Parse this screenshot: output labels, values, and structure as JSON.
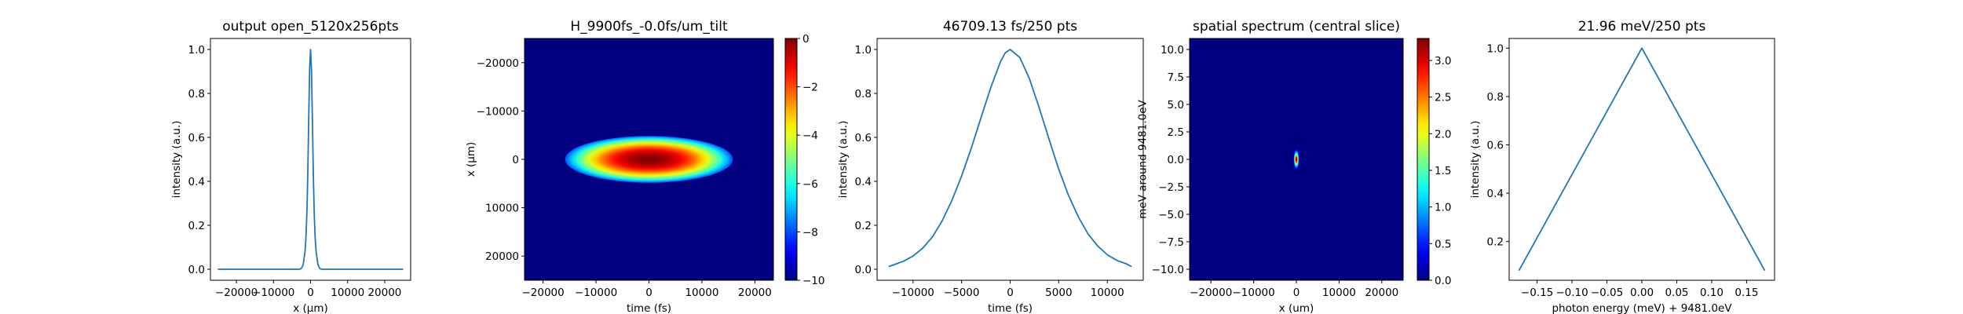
{
  "figure": {
    "background": "#ffffff",
    "line_color": "#1f77b4"
  },
  "chart_data": [
    {
      "type": "line",
      "title": "output open_5120x256pts",
      "xlabel": "x (μm)",
      "ylabel": "intensity (a.u.)",
      "xlim": [
        -27000,
        27000
      ],
      "ylim": [
        -0.05,
        1.05
      ],
      "xticks": [
        -20000,
        -10000,
        0,
        10000,
        20000
      ],
      "yticks": [
        0.0,
        0.2,
        0.4,
        0.6,
        0.8,
        1.0
      ],
      "xtick_labels": [
        "−20000",
        "−10000",
        "0",
        "10000",
        "20000"
      ],
      "ytick_labels": [
        "0.0",
        "0.2",
        "0.4",
        "0.6",
        "0.8",
        "1.0"
      ],
      "series": [
        {
          "x": [
            -25000,
            -3000,
            -2500,
            -2000,
            -1500,
            -1250,
            -1000,
            -750,
            -500,
            -250,
            0,
            250,
            500,
            750,
            1000,
            1250,
            1500,
            2000,
            2500,
            3000,
            25000
          ],
          "values": [
            0.0,
            0.0,
            0.003,
            0.02,
            0.08,
            0.14,
            0.25,
            0.43,
            0.68,
            0.91,
            1.0,
            0.91,
            0.68,
            0.43,
            0.25,
            0.14,
            0.08,
            0.02,
            0.003,
            0.0,
            0.0
          ]
        }
      ]
    },
    {
      "type": "heatmap",
      "title": "H_9900fs_-0.0fs/um_tilt",
      "xlabel": "time (fs)",
      "ylabel": "x (μm)",
      "xlim": [
        -23500,
        23500
      ],
      "ylim": [
        -25000,
        25000
      ],
      "y_inverted": true,
      "xticks": [
        -20000,
        -10000,
        0,
        10000,
        20000
      ],
      "yticks": [
        -20000,
        -10000,
        0,
        10000,
        20000
      ],
      "xtick_labels": [
        "−20000",
        "−10000",
        "0",
        "10000",
        "20000"
      ],
      "ytick_labels": [
        "−20000",
        "−10000",
        "0",
        "10000",
        "20000"
      ],
      "colormap": "jet",
      "clim": [
        -10,
        0
      ],
      "background_value": -10,
      "blob": {
        "center_t": 0,
        "center_x": 0,
        "sigma_t": 7200,
        "sigma_x": 2200,
        "peak": 0
      },
      "colorbar": {
        "ticks": [
          0,
          -2,
          -4,
          -6,
          -8,
          -10
        ],
        "tick_labels": [
          "0",
          "−2",
          "−4",
          "−6",
          "−8",
          "−10"
        ]
      }
    },
    {
      "type": "line",
      "title": "46709.13 fs/250 pts",
      "xlabel": "time (fs)",
      "ylabel": "intensity (a.u.)",
      "xlim": [
        -13700,
        13700
      ],
      "ylim": [
        -0.05,
        1.05
      ],
      "xticks": [
        -10000,
        -5000,
        0,
        5000,
        10000
      ],
      "yticks": [
        0.0,
        0.2,
        0.4,
        0.6,
        0.8,
        1.0
      ],
      "xtick_labels": [
        "−10000",
        "−5000",
        "0",
        "5000",
        "10000"
      ],
      "ytick_labels": [
        "0.0",
        "0.2",
        "0.4",
        "0.6",
        "0.8",
        "1.0"
      ],
      "series": [
        {
          "x": [
            -12500,
            -12000,
            -11000,
            -10000,
            -9000,
            -8000,
            -7000,
            -6000,
            -5000,
            -4000,
            -3000,
            -2000,
            -1000,
            -500,
            0,
            1000,
            2000,
            3000,
            4000,
            5000,
            6000,
            7000,
            8000,
            9000,
            10000,
            11000,
            12000,
            12500
          ],
          "values": [
            0.012,
            0.02,
            0.036,
            0.06,
            0.096,
            0.147,
            0.22,
            0.313,
            0.424,
            0.551,
            0.69,
            0.826,
            0.944,
            0.985,
            1.0,
            0.963,
            0.865,
            0.733,
            0.592,
            0.455,
            0.337,
            0.24,
            0.162,
            0.106,
            0.066,
            0.04,
            0.024,
            0.012
          ]
        }
      ]
    },
    {
      "type": "heatmap",
      "title": "spatial spectrum (central slice)",
      "xlabel": "x (um)",
      "ylabel": "meV around 9481.0eV",
      "xlim": [
        -25000,
        25000
      ],
      "ylim": [
        -11,
        11
      ],
      "xticks": [
        -20000,
        -10000,
        0,
        10000,
        20000
      ],
      "yticks": [
        10.0,
        7.5,
        5.0,
        2.5,
        0.0,
        -2.5,
        -5.0,
        -7.5,
        -10.0
      ],
      "xtick_labels": [
        "−20000",
        "−10000",
        "0",
        "10000",
        "20000"
      ],
      "ytick_labels": [
        "10.0",
        "7.5",
        "5.0",
        "2.5",
        "0.0",
        "−2.5",
        "−5.0",
        "−7.5",
        "−10.0"
      ],
      "colormap": "jet",
      "clim": [
        0,
        3.3
      ],
      "background_value": 0,
      "blob": {
        "center_t": 0,
        "center_x": 0,
        "sigma_t": 320,
        "sigma_x": 0.42,
        "peak": 3.3
      },
      "colorbar": {
        "ticks": [
          0.0,
          0.5,
          1.0,
          1.5,
          2.0,
          2.5,
          3.0
        ],
        "tick_labels": [
          "0.0",
          "0.5",
          "1.0",
          "1.5",
          "2.0",
          "2.5",
          "3.0"
        ]
      }
    },
    {
      "type": "line",
      "title": "21.96 meV/250 pts",
      "xlabel": "photon energy (meV) + 9481.0eV",
      "ylabel": "intensity (a.u.)",
      "xlim": [
        -0.19,
        0.19
      ],
      "ylim": [
        0.04,
        1.04
      ],
      "xticks": [
        -0.15,
        -0.1,
        -0.05,
        0.0,
        0.05,
        0.1,
        0.15
      ],
      "yticks": [
        0.2,
        0.4,
        0.6,
        0.8,
        1.0
      ],
      "xtick_labels": [
        "−0.15",
        "−0.10",
        "−0.05",
        "0.00",
        "0.05",
        "0.10",
        "0.15"
      ],
      "ytick_labels": [
        "0.2",
        "0.4",
        "0.6",
        "0.8",
        "1.0"
      ],
      "series": [
        {
          "x": [
            -0.176,
            0.0,
            0.176
          ],
          "values": [
            0.08,
            1.0,
            0.08
          ]
        }
      ]
    }
  ]
}
